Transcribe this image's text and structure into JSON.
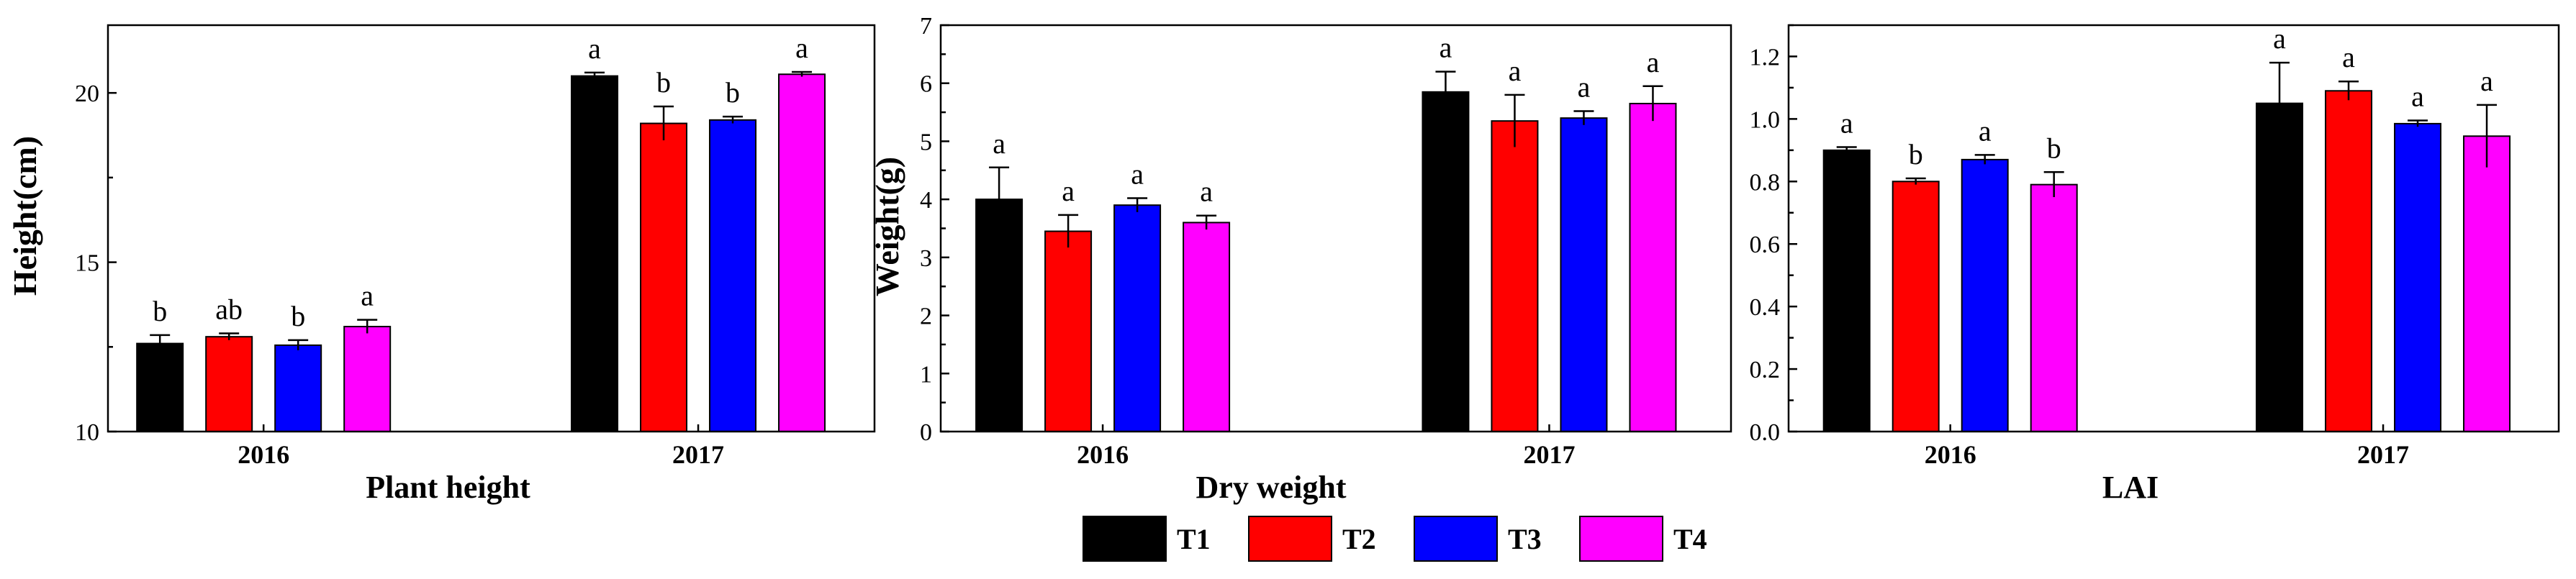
{
  "legend": [
    {
      "label": "T1",
      "color": "#000000"
    },
    {
      "label": "T2",
      "color": "#ff0000"
    },
    {
      "label": "T3",
      "color": "#0000ff"
    },
    {
      "label": "T4",
      "color": "#ff00ff"
    }
  ],
  "chart_data": [
    {
      "type": "bar",
      "title": "",
      "xlabel": "Plant height",
      "ylabel": "Height(cm)",
      "ylim": [
        10,
        22
      ],
      "yticks": [
        10,
        15,
        20
      ],
      "ytick_labels": [
        "10",
        "15",
        "20"
      ],
      "categories": [
        "2016",
        "2017"
      ],
      "series": [
        {
          "name": "T1",
          "values": [
            12.6,
            20.5
          ],
          "errors": [
            0.25,
            0.1
          ],
          "letters": [
            "b",
            "a"
          ]
        },
        {
          "name": "T2",
          "values": [
            12.8,
            19.1
          ],
          "errors": [
            0.1,
            0.5
          ],
          "letters": [
            "ab",
            "b"
          ]
        },
        {
          "name": "T3",
          "values": [
            12.55,
            19.2
          ],
          "errors": [
            0.15,
            0.1
          ],
          "letters": [
            "b",
            "b"
          ]
        },
        {
          "name": "T4",
          "values": [
            13.1,
            20.55
          ],
          "errors": [
            0.2,
            0.07
          ],
          "letters": [
            "a",
            "a"
          ]
        }
      ]
    },
    {
      "type": "bar",
      "title": "",
      "xlabel": "Dry weight",
      "ylabel": "Weight(g)",
      "ylim": [
        0,
        7
      ],
      "yticks": [
        0,
        1,
        2,
        3,
        4,
        5,
        6,
        7
      ],
      "ytick_labels": [
        "0",
        "1",
        "2",
        "3",
        "4",
        "5",
        "6",
        "7"
      ],
      "categories": [
        "2016",
        "2017"
      ],
      "series": [
        {
          "name": "T1",
          "values": [
            4.0,
            5.85
          ],
          "errors": [
            0.55,
            0.35
          ],
          "letters": [
            "a",
            "a"
          ]
        },
        {
          "name": "T2",
          "values": [
            3.45,
            5.35
          ],
          "errors": [
            0.28,
            0.45
          ],
          "letters": [
            "a",
            "a"
          ]
        },
        {
          "name": "T3",
          "values": [
            3.9,
            5.4
          ],
          "errors": [
            0.12,
            0.12
          ],
          "letters": [
            "a",
            "a"
          ]
        },
        {
          "name": "T4",
          "values": [
            3.6,
            5.65
          ],
          "errors": [
            0.12,
            0.3
          ],
          "letters": [
            "a",
            "a"
          ]
        }
      ]
    },
    {
      "type": "bar",
      "title": "",
      "xlabel": "LAI",
      "ylabel": "",
      "ylim": [
        0,
        1.3
      ],
      "yticks": [
        0,
        0.2,
        0.4,
        0.6,
        0.8,
        1.0,
        1.2
      ],
      "ytick_labels": [
        "0.0",
        "0.2",
        "0.4",
        "0.6",
        "0.8",
        "1.0",
        "1.2"
      ],
      "categories": [
        "2016",
        "2017"
      ],
      "series": [
        {
          "name": "T1",
          "values": [
            0.9,
            1.05
          ],
          "errors": [
            0.01,
            0.13
          ],
          "letters": [
            "a",
            "a"
          ]
        },
        {
          "name": "T2",
          "values": [
            0.8,
            1.09
          ],
          "errors": [
            0.01,
            0.03
          ],
          "letters": [
            "b",
            "a"
          ]
        },
        {
          "name": "T3",
          "values": [
            0.87,
            0.985
          ],
          "errors": [
            0.015,
            0.01
          ],
          "letters": [
            "a",
            "a"
          ]
        },
        {
          "name": "T4",
          "values": [
            0.79,
            0.945
          ],
          "errors": [
            0.04,
            0.1
          ],
          "letters": [
            "b",
            "a"
          ]
        }
      ]
    }
  ]
}
